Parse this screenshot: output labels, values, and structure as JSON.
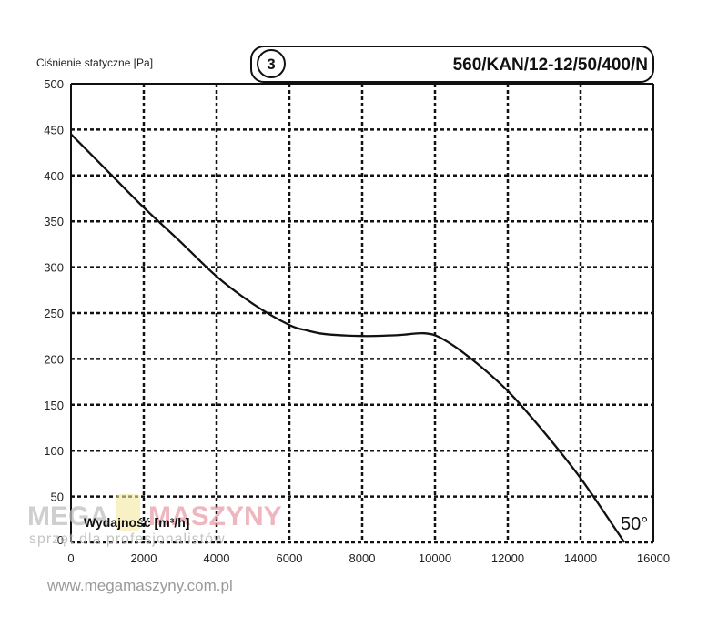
{
  "chart_data": {
    "type": "line",
    "title": "560/KAN/12-12/50/400/N",
    "curve_number": "3",
    "ylabel": "Ciśnienie statyczne [Pa]",
    "xlabel": "Wydajność [m³/h]",
    "xlim": [
      0,
      16000
    ],
    "ylim": [
      0,
      500
    ],
    "xticks": [
      "0",
      "2000",
      "4000",
      "6000",
      "8000",
      "10000",
      "12000",
      "14000",
      "16000"
    ],
    "yticks": [
      "500",
      "450",
      "400",
      "350",
      "300",
      "250",
      "200",
      "150",
      "100",
      "50",
      "0"
    ],
    "grid": true,
    "annotation": "50°",
    "series": [
      {
        "x": [
          0,
          1000,
          2000,
          3000,
          4000,
          5000,
          6000,
          6500,
          7000,
          8000,
          9000,
          9700,
          10200,
          11000,
          12000,
          13000,
          14000,
          15000,
          15200
        ],
        "y": [
          445,
          405,
          365,
          328,
          290,
          260,
          237,
          231,
          227,
          225,
          226,
          228,
          222,
          200,
          165,
          120,
          70,
          12,
          0
        ]
      }
    ]
  },
  "watermark": {
    "left": "MEGA",
    "right": "MASZYNY",
    "tagline": "sprzęt dla profesjonalistów"
  },
  "footer": {
    "website": "www.megamaszyny.com.pl"
  }
}
